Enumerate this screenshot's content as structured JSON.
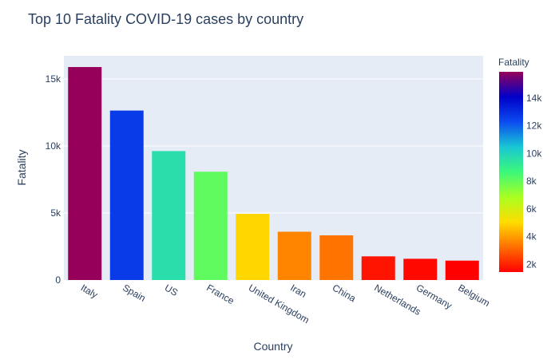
{
  "chart_data": {
    "type": "bar",
    "title": "Top 10 Fatality COVID-19 cases by country",
    "xlabel": "Country",
    "ylabel": "Fatality",
    "categories": [
      "Italy",
      "Spain",
      "US",
      "France",
      "United Kingdom",
      "Iran",
      "China",
      "Netherlands",
      "Germany",
      "Belgium"
    ],
    "values": [
      15887,
      12641,
      9620,
      8078,
      4934,
      3603,
      3333,
      1766,
      1584,
      1447
    ],
    "ylim": [
      0,
      16723
    ],
    "yticks": [
      0,
      5000,
      10000,
      15000
    ],
    "ytick_labels": [
      "0",
      "5k",
      "10k",
      "15k"
    ],
    "grid": true,
    "colorscale": {
      "name": "rainbow",
      "title": "Fatality",
      "range": [
        1447,
        15887
      ],
      "ticks": [
        2000,
        4000,
        6000,
        8000,
        10000,
        12000,
        14000
      ],
      "tick_labels": [
        "2k",
        "4k",
        "6k",
        "8k",
        "10k",
        "12k",
        "14k"
      ],
      "stops": [
        [
          0.0,
          "#ff0000"
        ],
        [
          0.125,
          "#ff6f00"
        ],
        [
          0.25,
          "#ffdd00"
        ],
        [
          0.375,
          "#a8ff21"
        ],
        [
          0.5,
          "#3cf87a"
        ],
        [
          0.625,
          "#18c7d4"
        ],
        [
          0.75,
          "#0b4bf0"
        ],
        [
          0.875,
          "#0000c8"
        ],
        [
          1.0,
          "#96005a"
        ]
      ]
    },
    "colors": {
      "plot_bg": "#e5ecf6",
      "grid": "#ffffff",
      "text": "#2a3f5f"
    }
  }
}
